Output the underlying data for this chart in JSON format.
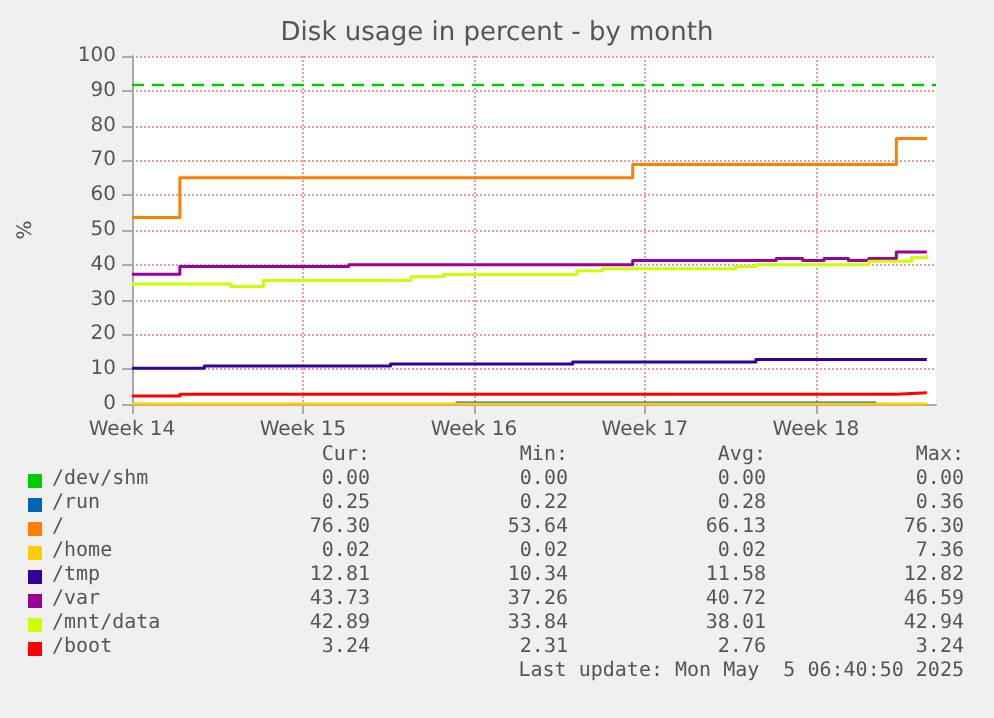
{
  "chart_data": {
    "type": "step",
    "title": "Disk usage in percent - by month",
    "ylabel": "%",
    "xlim": [
      "2025-03-31",
      "2025-05-02T22:00"
    ],
    "xticks": [
      {
        "value": "2025-03-31",
        "label": "Week 14"
      },
      {
        "value": "2025-04-07",
        "label": "Week 15"
      },
      {
        "value": "2025-04-14",
        "label": "Week 16"
      },
      {
        "value": "2025-04-21",
        "label": "Week 17"
      },
      {
        "value": "2025-04-28",
        "label": "Week 18"
      }
    ],
    "ylim": [
      0,
      100
    ],
    "yticks": [
      0,
      10,
      20,
      30,
      40,
      50,
      60,
      70,
      80,
      90,
      100
    ],
    "grid": true,
    "legend": "bottom",
    "line_style": "solid",
    "marker": "none",
    "series": [
      {
        "name": "/dev/shm",
        "color": "#00cc00"
      },
      {
        "name": "/run",
        "color": "#0066b3",
        "x": [
          "2025-04-13T06:00",
          "2025-04-30T11:00"
        ],
        "values": [
          0.3,
          0.2
        ]
      },
      {
        "name": "/",
        "color": "#ff8000",
        "x": [
          "2025-03-31",
          "2025-04-01T23:00",
          "2025-04-20T12:00",
          "2025-05-01T07:00",
          "2025-05-02T13:00"
        ],
        "values": [
          53.6,
          65,
          68.8,
          76.3,
          76.3
        ]
      },
      {
        "name": "/home",
        "color": "#ffcc00",
        "x": [
          "2025-03-31",
          "2025-05-02T13:00"
        ],
        "values": [
          0,
          0
        ]
      },
      {
        "name": "/tmp",
        "color": "#330099",
        "x": [
          "2025-03-31",
          "2025-04-02T23:00",
          "2025-04-10T14:00",
          "2025-04-18T01:00",
          "2025-04-25T13:00",
          "2025-05-02T13:00"
        ],
        "values": [
          10.3,
          10.9,
          11.5,
          12.1,
          12.8,
          12.8
        ]
      },
      {
        "name": "/var",
        "color": "#990099",
        "x": [
          "2025-03-31",
          "2025-04-01T23:00",
          "2025-04-08T21:00",
          "2025-04-20T12:00",
          "2025-04-26T09:00",
          "2025-04-27T11:00",
          "2025-04-28T08:00",
          "2025-04-29T08:00",
          "2025-04-30T04:00",
          "2025-05-01T07:00",
          "2025-05-02T13:00"
        ],
        "values": [
          37.3,
          39.5,
          40,
          41.2,
          41.8,
          41.2,
          41.8,
          41.2,
          41.8,
          43.7,
          43.7
        ]
      },
      {
        "name": "/mnt/data",
        "color": "#ccff00",
        "x": [
          "2025-03-31",
          "2025-04-04T01:00",
          "2025-04-05T09:00",
          "2025-04-11T10:00",
          "2025-04-12T18:00",
          "2025-04-18T05:00",
          "2025-04-19T06:00",
          "2025-04-24T17:00",
          "2025-04-25T13:00",
          "2025-04-30T04:00",
          "2025-05-01T22:00",
          "2025-05-02T13:00"
        ],
        "values": [
          34.5,
          33.8,
          35.5,
          36.6,
          37.2,
          38.3,
          38.9,
          39.5,
          40,
          41,
          42.1,
          42.9
        ]
      },
      {
        "name": "/boot",
        "color": "#ff0000",
        "x": [
          "2025-03-31",
          "2025-04-01T23:00",
          "2025-05-01T07:00",
          "2025-05-02T13:00"
        ],
        "values": [
          2.3,
          2.8,
          3.2,
          3.2
        ]
      }
    ],
    "ref_lines": [
      {
        "axis": "y",
        "value": 92,
        "color": "#00cc00",
        "line_style": "dashed"
      }
    ],
    "annotations": [
      "Cur:",
      "Min:",
      "Avg:",
      "Max:",
      "0.00",
      "0.00",
      "0.00",
      "0.00",
      "0.25",
      "0.22",
      "0.28",
      "0.36",
      "76.30",
      "53.64",
      "66.13",
      "76.30",
      "0.02",
      "0.02",
      "0.02",
      "7.36",
      "12.81",
      "10.34",
      "11.58",
      "12.82",
      "43.73",
      "37.26",
      "40.72",
      "46.59",
      "42.89",
      "33.84",
      "38.01",
      "42.94",
      "3.24",
      "2.31",
      "2.76",
      "3.24",
      "Last update: Mon May  5 06:40:50 2025"
    ]
  }
}
